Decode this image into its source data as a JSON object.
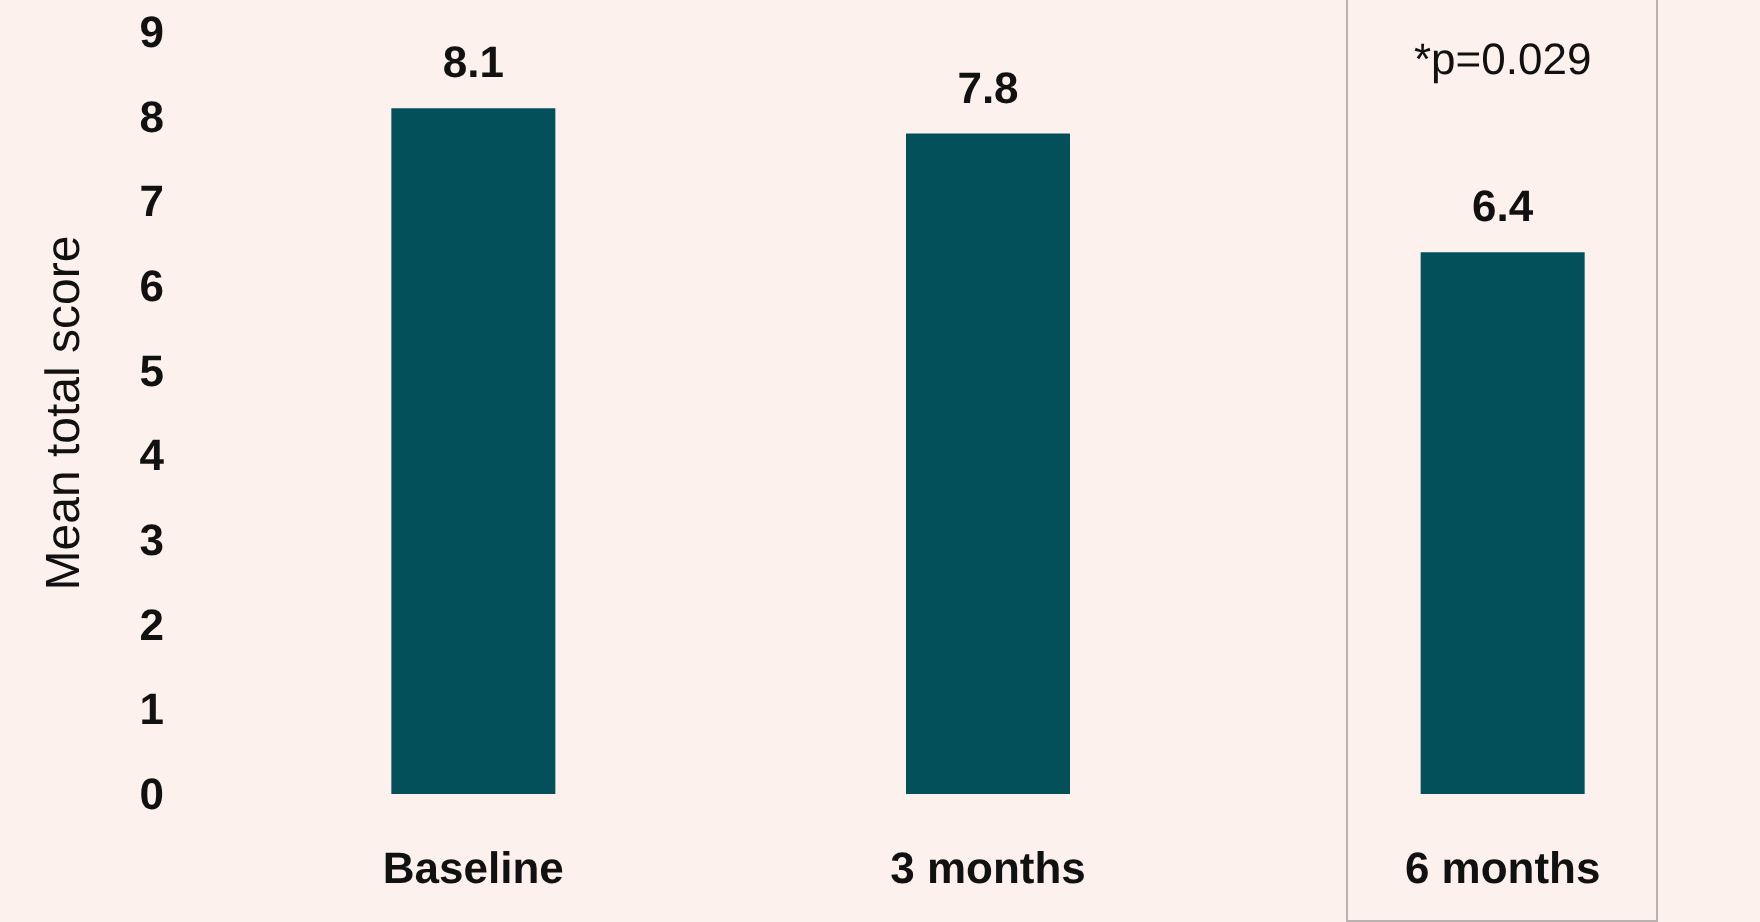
{
  "chart_data": {
    "type": "bar",
    "ylabel": "Mean total score",
    "categories": [
      "Baseline",
      "3 months",
      "6 months"
    ],
    "values": [
      8.1,
      7.8,
      6.4
    ],
    "color": "#034f5a",
    "data_labels": true,
    "ylim": [
      0,
      9
    ],
    "yticks": [
      0,
      1,
      2,
      3,
      4,
      5,
      6,
      7,
      8,
      9
    ],
    "grid": false,
    "annotations": [
      "*p=0.029"
    ]
  }
}
